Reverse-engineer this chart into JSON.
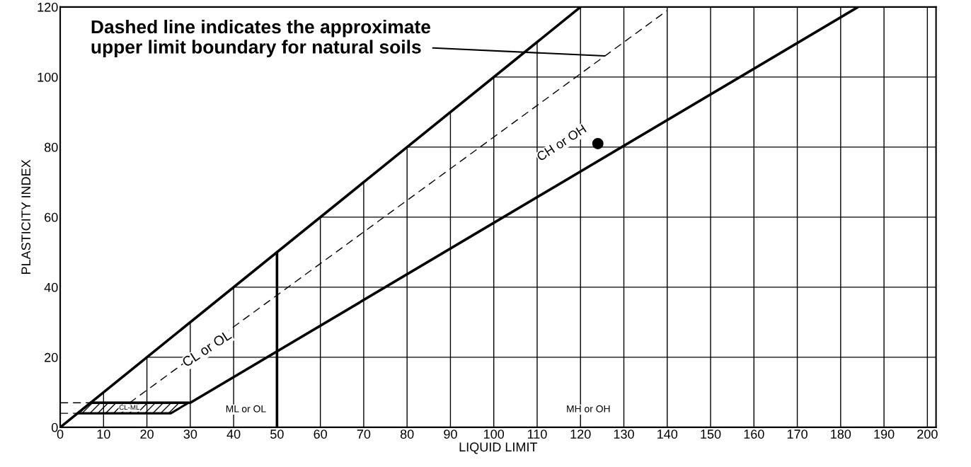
{
  "chart_data": {
    "type": "line",
    "xlabel": "LIQUID LIMIT",
    "ylabel": "PLASTICITY INDEX",
    "xlim": [
      0,
      202
    ],
    "ylim": [
      0,
      120
    ],
    "xticks": [
      0,
      10,
      20,
      30,
      40,
      50,
      60,
      70,
      80,
      90,
      100,
      110,
      120,
      130,
      140,
      150,
      160,
      170,
      180,
      190,
      200
    ],
    "yticks": [
      0,
      20,
      40,
      60,
      80,
      100,
      120
    ],
    "grid": true,
    "series": [
      {
        "color": "#000000",
        "line_style": "solid",
        "x": [
          0,
          120
        ],
        "values": [
          0,
          120
        ]
      },
      {
        "color": "#000000",
        "line_style": "solid",
        "x": [
          7,
          30,
          184
        ],
        "values": [
          7,
          7,
          120
        ]
      },
      {
        "color": "#000000",
        "line_style": "solid",
        "x": [
          50,
          50
        ],
        "values": [
          0,
          50
        ]
      },
      {
        "type": "area",
        "color": "#000000",
        "x": [
          4,
          25.5,
          29.6,
          7,
          4
        ],
        "values": [
          4,
          4,
          7,
          7,
          4
        ]
      },
      {
        "color": "#000000",
        "line_style": "dashed",
        "x": [
          16,
          140
        ],
        "values": [
          7,
          119
        ]
      },
      {
        "color": "#000000",
        "line_style": "dashed",
        "x": [
          0,
          7
        ],
        "values": [
          7,
          7
        ]
      },
      {
        "color": "#000000",
        "line_style": "dashed",
        "x": [
          0,
          4
        ],
        "values": [
          4,
          4
        ]
      },
      {
        "type": "scatter",
        "color": "#000000",
        "marker": "circle",
        "x": [
          124
        ],
        "values": [
          81
        ]
      }
    ],
    "annotations": [
      {
        "text": "Dashed line indicates the approximate\nupper limit boundary for natural soils",
        "x": 126,
        "y": 106
      },
      "CL or OL",
      "CH or OH",
      "ML or OL",
      "MH or OH",
      "CL-ML"
    ]
  }
}
